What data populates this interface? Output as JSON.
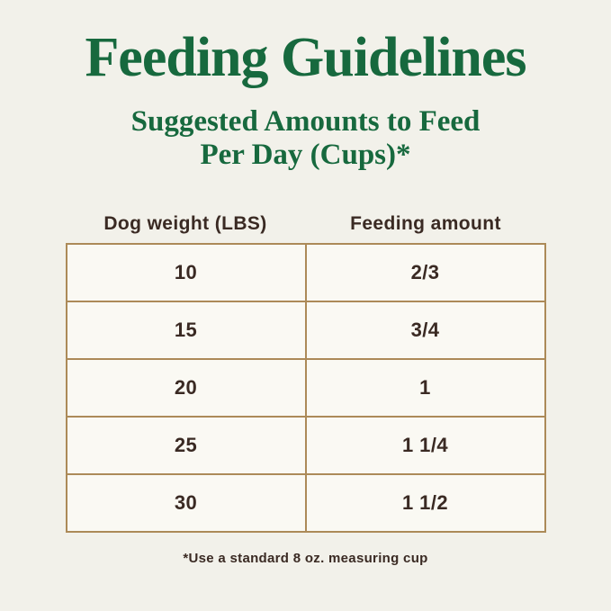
{
  "page": {
    "background_color": "#f2f1ea",
    "accent_green": "#17693e",
    "text_brown": "#3a2a23",
    "table_border_color": "#ac8a58",
    "cell_background": "#faf9f3"
  },
  "header": {
    "title": "Feeding Guidelines",
    "subtitle_line1": "Suggested Amounts to Feed",
    "subtitle_line2": "Per Day (Cups)*"
  },
  "table": {
    "columns": [
      "Dog weight (LBS)",
      "Feeding amount"
    ],
    "rows": [
      {
        "weight": "10",
        "amount": "2/3"
      },
      {
        "weight": "15",
        "amount": "3/4"
      },
      {
        "weight": "20",
        "amount": "1"
      },
      {
        "weight": "25",
        "amount": "1 1/4"
      },
      {
        "weight": "30",
        "amount": "1 1/2"
      }
    ]
  },
  "footnote": "*Use a standard 8 oz. measuring cup",
  "chart_data": {
    "type": "table",
    "title": "Feeding Guidelines",
    "subtitle": "Suggested Amounts to Feed Per Day (Cups)*",
    "columns": [
      "Dog weight (LBS)",
      "Feeding amount"
    ],
    "rows": [
      [
        "10",
        "2/3"
      ],
      [
        "15",
        "3/4"
      ],
      [
        "20",
        "1"
      ],
      [
        "25",
        "1 1/4"
      ],
      [
        "30",
        "1 1/2"
      ]
    ],
    "footnote": "*Use a standard 8 oz. measuring cup",
    "layout": "two-column centered table, headers above bordered grid"
  }
}
